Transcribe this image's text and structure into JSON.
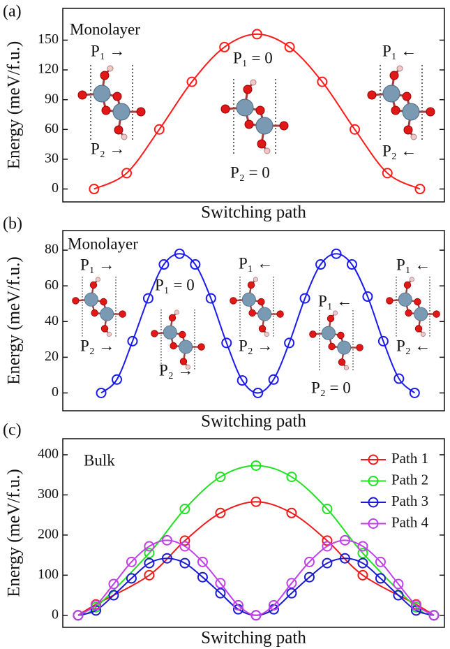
{
  "chart_data": [
    {
      "type": "line",
      "label": "(a)",
      "xlabel": "Switching path",
      "ylabel": "Energy (meV/f.u.)",
      "annotations": [
        "Monolayer",
        "P₁ →",
        "P₂ →",
        "P₁ = 0",
        "P₂ = 0",
        "P₁ ←",
        "P₂ ←"
      ],
      "x": [
        0,
        1,
        2,
        3,
        4,
        5,
        6,
        7,
        8,
        9,
        10
      ],
      "xlim": [
        -0.96,
        10.75
      ],
      "ylim": [
        -13,
        182
      ],
      "yticks": [
        0,
        30,
        60,
        90,
        120,
        150
      ],
      "series": [
        {
          "color": "#ff1a1a",
          "values": [
            0,
            16,
            60,
            108,
            143,
            156,
            143,
            108,
            60,
            16,
            0
          ]
        }
      ]
    },
    {
      "type": "line",
      "label": "(b)",
      "xlabel": "Switching path",
      "ylabel": "Energy (meV/f.u.)",
      "annotations": [
        "Monolayer",
        "P₁ →",
        "P₂ →",
        "P₁ = 0",
        "P₂ →",
        "P₁ ←",
        "P₂ →",
        "P₁ ←",
        "P₂ = 0",
        "P₁ ←",
        "P₂ ←"
      ],
      "x": [
        0,
        1,
        2,
        3,
        4,
        5,
        6,
        7,
        8,
        9,
        10,
        11,
        12,
        13,
        14,
        15,
        16,
        17,
        18,
        19,
        20
      ],
      "xlim": [
        -2.45,
        21.9
      ],
      "ylim": [
        -10,
        91
      ],
      "yticks": [
        0,
        20,
        40,
        60,
        80
      ],
      "series": [
        {
          "color": "#1a1aee",
          "values": [
            0,
            7.5,
            29,
            53,
            72,
            78,
            72,
            53,
            28,
            7,
            0,
            7.5,
            28,
            53,
            72,
            78,
            72,
            54,
            29,
            8,
            0
          ]
        }
      ]
    },
    {
      "type": "line",
      "label": "(c)",
      "xlabel": "Switching path",
      "ylabel": "Energy (meV/f.u.)",
      "annotations": [
        "Bulk"
      ],
      "legend": "upper right",
      "xlim": [
        -0.86,
        20.59
      ],
      "ylim": [
        -30,
        440
      ],
      "yticks": [
        0,
        100,
        200,
        300,
        400
      ],
      "series": [
        {
          "name": "Path 1",
          "color": "#ee1a1a",
          "x": [
            0,
            1,
            4,
            6,
            8,
            10,
            12,
            14,
            16,
            19,
            20
          ],
          "values": [
            0,
            27,
            100,
            186,
            255,
            283,
            255,
            186,
            100,
            27,
            0
          ]
        },
        {
          "name": "Path 2",
          "color": "#22e022",
          "x": [
            0,
            1,
            4,
            6,
            8,
            10,
            12,
            14,
            16,
            19,
            20
          ],
          "values": [
            0,
            20,
            155,
            265,
            345,
            373,
            345,
            265,
            155,
            20,
            0
          ]
        },
        {
          "name": "Path 3",
          "color": "#1a1ad0",
          "x": [
            0,
            1,
            2,
            3,
            4,
            5,
            6,
            7,
            8,
            9,
            10,
            11,
            12,
            13,
            14,
            15,
            16,
            17,
            18,
            19,
            20
          ],
          "values": [
            0,
            12,
            50,
            92,
            130,
            142,
            130,
            95,
            55,
            15,
            0,
            15,
            55,
            95,
            130,
            142,
            130,
            92,
            50,
            12,
            0
          ]
        },
        {
          "name": "Path 4",
          "color": "#c040e8",
          "x": [
            0,
            1,
            2,
            3,
            4,
            5,
            6,
            7,
            8,
            9,
            10,
            11,
            12,
            13,
            14,
            15,
            16,
            17,
            18,
            19,
            20
          ],
          "values": [
            0,
            25,
            78,
            133,
            172,
            187,
            172,
            133,
            80,
            25,
            0,
            25,
            80,
            133,
            172,
            187,
            172,
            133,
            78,
            25,
            0
          ]
        }
      ]
    }
  ]
}
